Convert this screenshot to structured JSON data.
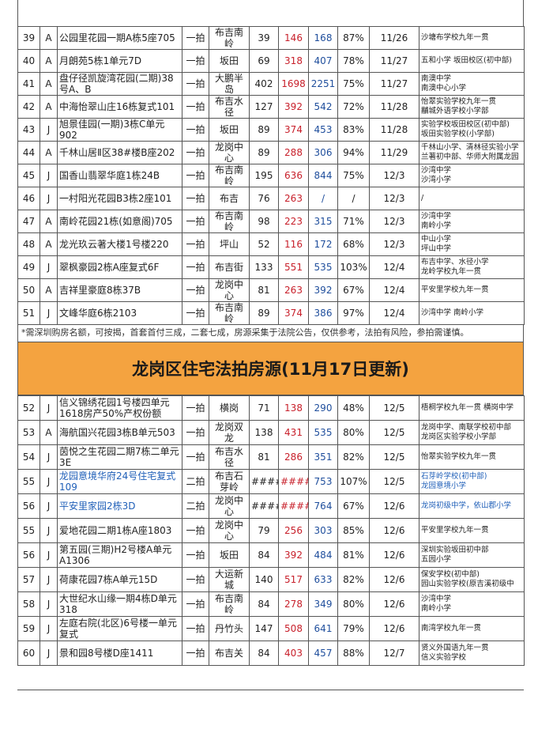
{
  "table1": {
    "rows": [
      [
        "39",
        "A",
        "公园里花园一期A栋5座705",
        "一拍",
        "布吉南岭",
        39,
        146,
        168,
        "87%",
        "11/26",
        [
          "沙塘布学校九年一贯"
        ]
      ],
      [
        "40",
        "A",
        "月朗苑5栋1单元7D",
        "一拍",
        "坂田",
        69,
        318,
        407,
        "78%",
        "11/27",
        [
          "五和小学 坂田校区(初中部)"
        ]
      ],
      [
        "41",
        "A",
        "盘仔径凯旋湾花园(二期)38号A、B",
        "一拍",
        "大鹏半岛",
        402,
        1698,
        2251,
        "75%",
        "11/27",
        [
          "南澳中学",
          "南澳中心小学"
        ]
      ],
      [
        "42",
        "A",
        "中海怡翠山庄16栋复式101",
        "一拍",
        "布吉水径",
        127,
        392,
        542,
        "72%",
        "11/28",
        [
          "怡翠实验学校九年一贯",
          "黼城外语学校小学部"
        ]
      ],
      [
        "43",
        "J",
        "旭景佳园(一期)3栋C单元902",
        "一拍",
        "坂田",
        89,
        374,
        453,
        "83%",
        "11/28",
        [
          "实验学校坂田校区(初中部)",
          "坂田实验学校(小学部)"
        ]
      ],
      [
        "44",
        "A",
        "千林山居Ⅱ区38#楼B座202",
        "一拍",
        "龙岗中心",
        89,
        288,
        306,
        "94%",
        "11/29",
        [
          "千林山小学、清林径实验小学",
          "兰著初中部、华师大附属龙园"
        ]
      ],
      [
        "45",
        "J",
        "国香山翡翠华庭1栋24B",
        "一拍",
        "布吉南岭",
        195,
        636,
        844,
        "75%",
        "12/3",
        [
          "沙湾中学",
          "沙湾小学"
        ]
      ],
      [
        "46",
        "J",
        "一村阳光花园B3栋2座101",
        "一拍",
        "布吉",
        76,
        263,
        "/",
        "/",
        "12/3",
        [
          "/"
        ]
      ],
      [
        "47",
        "A",
        "南岭花园21栋(如意阁)705",
        "一拍",
        "布吉南岭",
        98,
        223,
        315,
        "71%",
        "12/3",
        [
          "沙湾中学",
          "南岭小学"
        ]
      ],
      [
        "48",
        "A",
        "龙光玖云著大楼1号楼220",
        "一拍",
        "坪山",
        52,
        116,
        172,
        "68%",
        "12/3",
        [
          "中山小学",
          "坪山中学"
        ]
      ],
      [
        "49",
        "J",
        "翠枫豪园2栋A座复式6F",
        "一拍",
        "布吉街",
        133,
        551,
        535,
        "103%",
        "12/4",
        [
          "布吉中学、水径小学",
          "龙岭学校九年一贯"
        ]
      ],
      [
        "50",
        "A",
        "吉祥里豪庭8栋37B",
        "一拍",
        "龙岗中心",
        81,
        263,
        392,
        "67%",
        "12/4",
        [
          "平安里学校九年一贯"
        ]
      ],
      [
        "51",
        "J",
        "文峰华庭6栋2103",
        "一拍",
        "布吉南岭",
        89,
        374,
        386,
        "97%",
        "12/4",
        [
          "沙湾中学 南岭小学"
        ]
      ]
    ]
  },
  "note": "*需深圳购房名额，可按揭，首套首付三成，二套七成，房源采集于法院公告，仅供参考，法拍有风险，参拍需谨慎。",
  "banner": "龙岗区住宅法拍房源(11月17日更新)",
  "table2": {
    "rows": [
      [
        "52",
        "J",
        "信义锦绣花园1号楼四单元1618房产50%产权份额",
        "一拍",
        "横岗",
        71,
        138,
        290,
        "48%",
        "12/5",
        [
          "梧桐学校九年一贯 横岗中学"
        ]
      ],
      [
        "53",
        "A",
        "海航国兴花园3栋B单元503",
        "一拍",
        "龙岗双龙",
        138,
        431,
        535,
        "80%",
        "12/5",
        [
          "龙岗中学、南联学校初中部",
          "龙岗区实验学校小学部"
        ]
      ],
      [
        "54",
        "J",
        "茵悦之生花园二期7栋二单元3E",
        "一拍",
        "布吉水径",
        81,
        286,
        351,
        "82%",
        "12/5",
        [
          "怡翠实验学校九年一贯"
        ]
      ],
      [
        "55",
        "J",
        "龙园意境华府24号住宅复式109",
        "二拍",
        "布吉石芽岭",
        "#####",
        "######",
        753,
        "107%",
        "12/5",
        [
          "石芽岭学校(初中部)",
          "龙园意境小学"
        ]
      ],
      [
        "56",
        "J",
        "平安里家园2栋3D",
        "二拍",
        "龙岗中心",
        "#####",
        "######",
        764,
        "67%",
        "12/6",
        [
          "龙岗初级中学，依山郡小学"
        ]
      ],
      [
        "55",
        "J",
        "爱地花园二期1栋A座1803",
        "一拍",
        "龙岗中心",
        79,
        256,
        303,
        "85%",
        "12/6",
        [
          "平安里学校九年一贯"
        ]
      ],
      [
        "56",
        "J",
        "第五园(三期)H2号楼A单元A1306",
        "一拍",
        "坂田",
        84,
        392,
        484,
        "81%",
        "12/6",
        [
          "深圳实验坂田初中部",
          "五园小学"
        ]
      ],
      [
        "57",
        "J",
        "荷康花园7栋A单元15D",
        "一拍",
        "大运新城",
        140,
        517,
        633,
        "82%",
        "12/6",
        [
          "保安学校(初中部)",
          "园山实验学校(原吉溪初级中"
        ]
      ],
      [
        "58",
        "J",
        "大世纪水山缘一期4栋D单元318",
        "一拍",
        "布吉南岭",
        84,
        278,
        349,
        "80%",
        "12/6",
        [
          "沙湾中学",
          "南岭小学"
        ]
      ],
      [
        "59",
        "J",
        "左庭右院(北区)6号楼一单元复式",
        "一拍",
        "丹竹头",
        147,
        508,
        641,
        "79%",
        "12/6",
        [
          "南湾学校九年一贯"
        ]
      ],
      [
        "60",
        "J",
        "景和园8号楼D座1411",
        "一拍",
        "布吉关",
        84,
        403,
        457,
        "88%",
        "12/7",
        [
          "贤义外国语九年一贯",
          "信义实验学校"
        ]
      ]
    ]
  }
}
